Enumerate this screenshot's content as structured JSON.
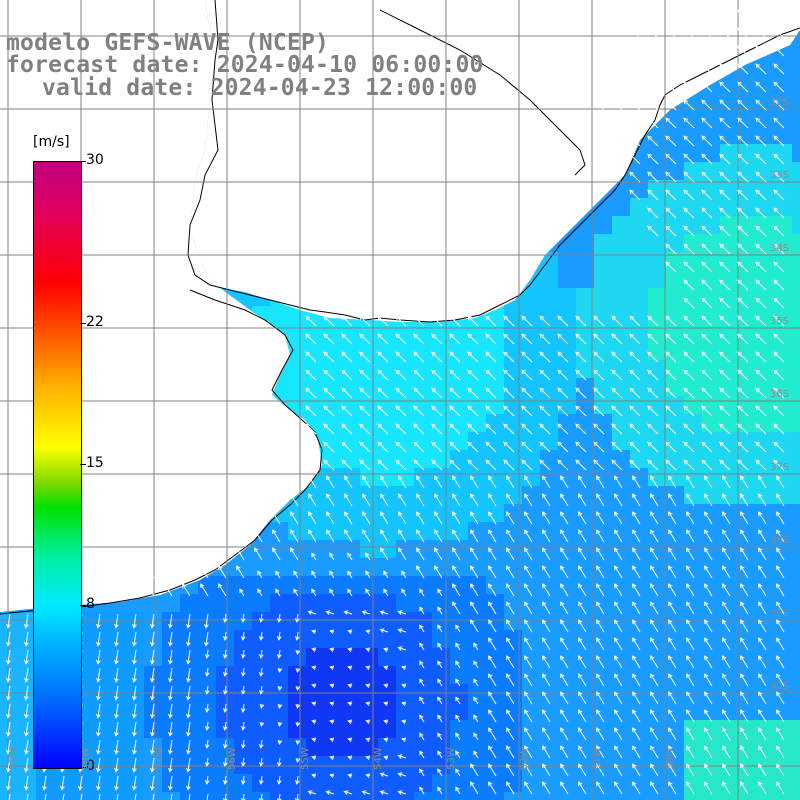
{
  "header": {
    "model_line": "modelo GEFS-WAVE (NCEP)",
    "forecast_line": "forecast date: 2024-04-10 06:00:00",
    "valid_line": "valid date: 2024-04-23 12:00:00"
  },
  "colorbar": {
    "unit": "[m/s]",
    "ticks": [
      "30",
      "22",
      "15",
      "8",
      "0"
    ],
    "tick_values": [
      30,
      22,
      15,
      8,
      0
    ],
    "min": 0,
    "max": 30,
    "colors": [
      "#0000ff",
      "#00b0ff",
      "#00eaff",
      "#00e000",
      "#ffff00",
      "#ff0000",
      "#c00080"
    ]
  },
  "map": {
    "land_color": "#ffffff",
    "coast_color": "#000000",
    "grid_color": "#808080",
    "arrow_color": "#ffffff",
    "lat_labels": [
      "32S",
      "33S",
      "34S",
      "35S",
      "36S",
      "37S",
      "38S",
      "39S",
      "40S"
    ],
    "lon_labels": [
      "59W",
      "58W",
      "57W",
      "56W",
      "55W",
      "54W",
      "53W",
      "52W",
      "51W",
      "50W"
    ]
  }
}
